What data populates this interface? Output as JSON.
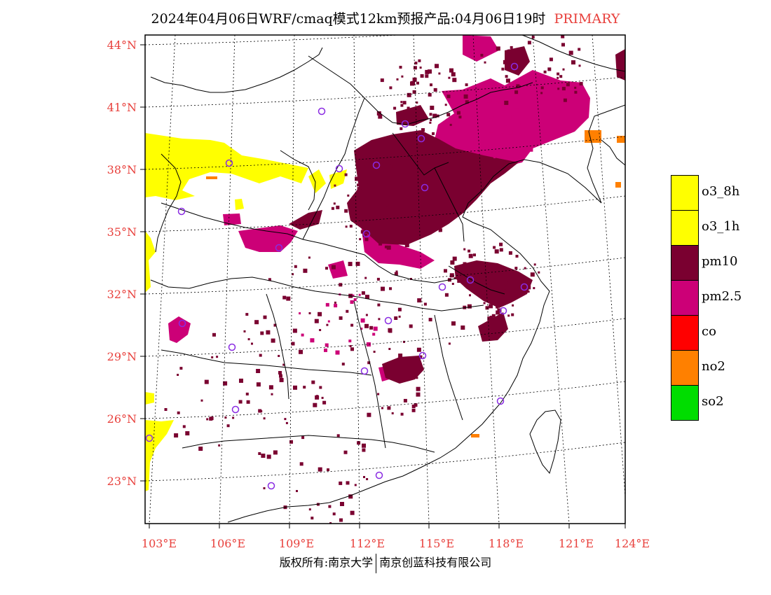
{
  "title": {
    "main": "2024年04月06日WRF/cmaq模式12km预报产品:04月06日19时",
    "primary": "PRIMARY"
  },
  "latitudes": [
    "44°N",
    "41°N",
    "38°N",
    "35°N",
    "32°N",
    "29°N",
    "26°N",
    "23°N"
  ],
  "longitudes": [
    "103°E",
    "106°E",
    "109°E",
    "112°E",
    "115°E",
    "118°E",
    "121°E",
    "124°E"
  ],
  "legend": [
    {
      "label": "o3_8h",
      "color": "#ffff00"
    },
    {
      "label": "o3_1h",
      "color": "#ffff00"
    },
    {
      "label": "pm10",
      "color": "#7a0030"
    },
    {
      "label": "pm2.5",
      "color": "#cc0077"
    },
    {
      "label": "co",
      "color": "#ff0000"
    },
    {
      "label": "no2",
      "color": "#ff8000"
    },
    {
      "label": "so2",
      "color": "#00dd00"
    }
  ],
  "copyright": {
    "left": "版权所有:南京大学",
    "right": "南京创蓝科技有限公司"
  },
  "colors": {
    "axis_label": "#e8403c",
    "station_marker": "#8a2be2"
  }
}
